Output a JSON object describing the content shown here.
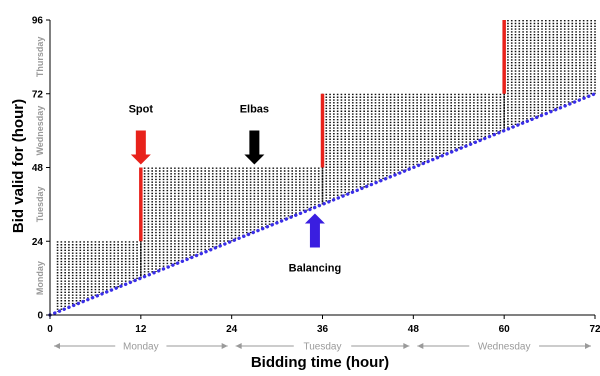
{
  "chart_data": {
    "type": "scatter",
    "xlabel": "Bidding time (hour)",
    "ylabel": "Bid valid for (hour)",
    "xlim": [
      0,
      72
    ],
    "ylim": [
      0,
      96
    ],
    "x_ticks": [
      0,
      12,
      24,
      36,
      48,
      60,
      72
    ],
    "y_ticks": [
      0,
      24,
      48,
      72,
      96
    ],
    "x_day_labels": [
      {
        "label": "Monday",
        "from": 0,
        "to": 24
      },
      {
        "label": "Tuesday",
        "from": 24,
        "to": 48
      },
      {
        "label": "Wednesday",
        "from": 48,
        "to": 72
      }
    ],
    "y_day_labels": [
      {
        "label": "Monday",
        "from": 0,
        "to": 24
      },
      {
        "label": "Tuesday",
        "from": 24,
        "to": 48
      },
      {
        "label": "Wednesday",
        "from": 48,
        "to": 72
      },
      {
        "label": "Thursday",
        "from": 72,
        "to": 96
      }
    ],
    "balancing_diagonal": {
      "x": [
        0,
        72
      ],
      "y": [
        0,
        72
      ],
      "color": "#3a2ee8"
    },
    "bid_regions": [
      {
        "x_from": 1,
        "x_to": 12,
        "upper": 24
      },
      {
        "x_from": 12,
        "x_to": 36,
        "upper": 48
      },
      {
        "x_from": 36,
        "x_to": 60,
        "upper": 72
      },
      {
        "x_from": 60,
        "x_to": 72,
        "upper": 96
      }
    ],
    "gate_closures": [
      {
        "x": 12,
        "y_from": 24,
        "y_to": 48
      },
      {
        "x": 36,
        "y_from": 48,
        "y_to": 72
      },
      {
        "x": 60,
        "y_from": 72,
        "y_to": 96
      }
    ],
    "annotations": [
      {
        "text": "Spot",
        "arrow_color": "#e8221b",
        "x": 12,
        "y": 48,
        "direction": "down"
      },
      {
        "text": "Elbas",
        "arrow_color": "#000000",
        "x": 27,
        "y": 48,
        "direction": "down"
      },
      {
        "text": "Balancing",
        "arrow_color": "#3a1ee0",
        "x": 35,
        "y": 34,
        "direction": "up"
      }
    ],
    "colors": {
      "bid_dots": "#111111",
      "gate_closure": "#e8221b",
      "day_label": "#9a9a9a"
    }
  }
}
